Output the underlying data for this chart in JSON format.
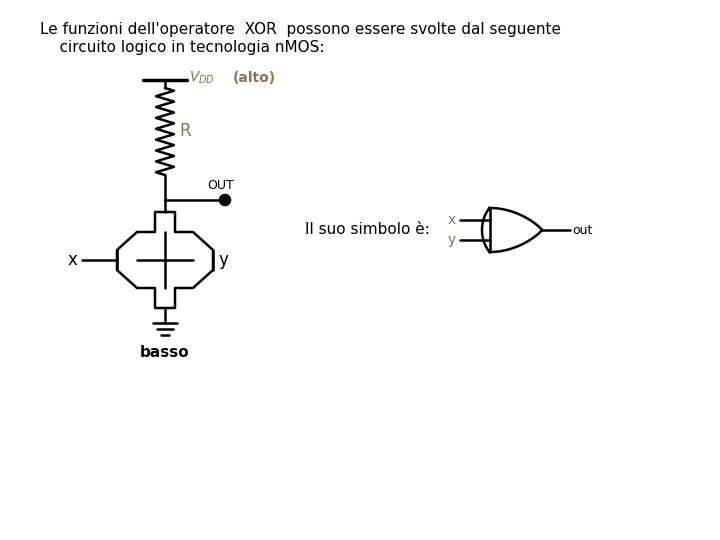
{
  "title_line1": "Le funzioni dell'operatore  XOR  possono essere svolte dal seguente",
  "title_line2": "    circuito logico in tecnologia nMOS:",
  "bg_color": "#ffffff",
  "fg_color": "#000000",
  "text_color_labels": "#8B7355",
  "text_symbol": "Il suo simbolo è:",
  "vdd_label": "(alto)",
  "r_label": "R",
  "out_label": "OUT",
  "x_label": "x",
  "y_label": "y",
  "basso_label": "basso",
  "out_right_label": "out",
  "x_xor": "x",
  "y_xor": "y"
}
